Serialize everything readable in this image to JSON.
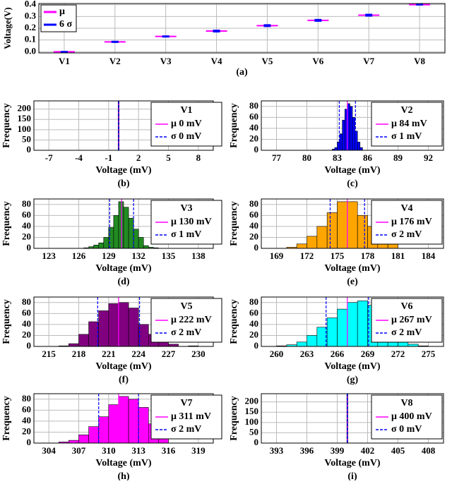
{
  "chart_data": [
    {
      "type": "errorbar",
      "caption": "(a)",
      "ylabel": "Voltage(V)",
      "categories": [
        "V1",
        "V2",
        "V3",
        "V4",
        "V5",
        "V6",
        "V7",
        "V8"
      ],
      "series": [
        {
          "name": "μ",
          "color": "#ff00ff",
          "values": [
            0.0,
            0.084,
            0.13,
            0.176,
            0.222,
            0.267,
            0.311,
            0.4
          ]
        },
        {
          "name": "6 σ",
          "color": "#0000ff",
          "values": [
            0,
            0.006,
            0.006,
            0.012,
            0.012,
            0.012,
            0.012,
            0
          ]
        }
      ],
      "ylim": [
        -0.01,
        0.41
      ],
      "yticks": [
        {
          "value": 0,
          "label": "0.0"
        },
        {
          "value": 0.1,
          "label": "0.1"
        },
        {
          "value": 0.2,
          "label": "0.2"
        },
        {
          "value": 0.3,
          "label": "0.3"
        },
        {
          "value": 0.4,
          "label": "0.4"
        }
      ],
      "grid": true,
      "legend": "upper left"
    },
    {
      "type": "histogram",
      "caption": "(b)",
      "xlabel": "Voltage (mV)",
      "ylabel": "Frequency",
      "legend_title": "V1",
      "mean_label": "μ 0 mV",
      "std_label": "σ 0 mV",
      "mean": 0,
      "std": 0,
      "bins": [
        -0.05,
        0.05
      ],
      "counts": [
        240
      ],
      "color": "#0000ff",
      "mean_color": "#ff00ff",
      "std_color": "#0000ff",
      "xlim": [
        -8.5,
        9.5
      ],
      "xticks": [
        -7,
        -4,
        -1,
        2,
        5,
        8
      ],
      "ylim": [
        0,
        240
      ],
      "yticks": [
        0,
        50,
        100,
        150,
        200
      ],
      "grid": true,
      "legend": "upper right"
    },
    {
      "type": "histogram",
      "caption": "(c)",
      "xlabel": "Voltage (mV)",
      "ylabel": "Frequency",
      "legend_title": "V2",
      "mean_label": "μ 84 mV",
      "std_label": "σ 1 mV",
      "mean": 84,
      "std": 0.8,
      "bins": [
        82.5,
        82.75,
        83,
        83.25,
        83.5,
        83.75,
        84,
        84.25,
        84.5,
        84.75,
        85,
        85.25,
        85.5
      ],
      "counts": [
        2,
        5,
        15,
        30,
        55,
        75,
        85,
        80,
        60,
        35,
        15,
        5
      ],
      "color": "#0000ff",
      "mean_color": "#ff00ff",
      "std_color": "#0000ff",
      "xlim": [
        75.5,
        93.5
      ],
      "xticks": [
        77,
        80,
        83,
        86,
        89,
        92
      ],
      "ylim": [
        0,
        90
      ],
      "yticks": [
        0,
        20,
        40,
        60,
        80
      ],
      "grid": true,
      "legend": "upper right"
    },
    {
      "type": "histogram",
      "caption": "(d)",
      "xlabel": "Voltage (mV)",
      "ylabel": "Frequency",
      "legend_title": "V3",
      "mean_label": "μ 130 mV",
      "std_label": "σ 1 mV",
      "mean": 130.3,
      "std": 1.2,
      "bins": [
        126.5,
        127,
        127.5,
        128,
        128.5,
        129,
        129.5,
        130,
        130.5,
        131,
        131.5,
        132,
        132.5,
        133,
        133.5,
        134
      ],
      "counts": [
        1,
        3,
        6,
        10,
        20,
        38,
        60,
        85,
        75,
        55,
        35,
        20,
        5,
        2,
        1
      ],
      "color": "#228b22",
      "mean_color": "#ff00ff",
      "std_color": "#0000ff",
      "xlim": [
        121.5,
        139.5
      ],
      "xticks": [
        123,
        126,
        129,
        132,
        135,
        138
      ],
      "ylim": [
        0,
        90
      ],
      "yticks": [
        0,
        20,
        40,
        60,
        80
      ],
      "grid": true,
      "legend": "upper right"
    },
    {
      "type": "histogram",
      "caption": "(e)",
      "xlabel": "Voltage (mV)",
      "ylabel": "Frequency",
      "legend_title": "V4",
      "mean_label": "μ 176 mV",
      "std_label": "σ 2 mV",
      "mean": 176,
      "std": 1.7,
      "bins": [
        170,
        171,
        172,
        173,
        174,
        175,
        176,
        177,
        178,
        179,
        180,
        181
      ],
      "counts": [
        2,
        8,
        22,
        40,
        65,
        85,
        85,
        60,
        40,
        18,
        8
      ],
      "color": "#ffa500",
      "mean_color": "#ff00ff",
      "std_color": "#0000ff",
      "xlim": [
        167.5,
        185.5
      ],
      "xticks": [
        169,
        172,
        175,
        178,
        181,
        184
      ],
      "ylim": [
        0,
        90
      ],
      "yticks": [
        0,
        20,
        40,
        60,
        80
      ],
      "grid": true,
      "legend": "upper right"
    },
    {
      "type": "histogram",
      "caption": "(f)",
      "xlabel": "Voltage (mV)",
      "ylabel": "Frequency",
      "legend_title": "V5",
      "mean_label": "μ 222 mV",
      "std_label": "σ 2 mV",
      "mean": 222,
      "std": 2.1,
      "bins": [
        216,
        217,
        218,
        219,
        220,
        221,
        222,
        223,
        224,
        225,
        226,
        227,
        228,
        229,
        230
      ],
      "counts": [
        1,
        5,
        22,
        45,
        65,
        78,
        80,
        70,
        40,
        22,
        8,
        4,
        0,
        1
      ],
      "color": "#800080",
      "mean_color": "#ff00ff",
      "std_color": "#0000ff",
      "xlim": [
        213.5,
        231.5
      ],
      "xticks": [
        215,
        218,
        221,
        224,
        227,
        230
      ],
      "ylim": [
        0,
        90
      ],
      "yticks": [
        0,
        20,
        40,
        60,
        80
      ],
      "grid": true,
      "legend": "upper right"
    },
    {
      "type": "histogram",
      "caption": "(g)",
      "xlabel": "Voltage (mV)",
      "ylabel": "Frequency",
      "legend_title": "V6",
      "mean_label": "μ 267 mV",
      "std_label": "σ 2 mV",
      "mean": 267,
      "std": 2.1,
      "bins": [
        260,
        261,
        262,
        263,
        264,
        265,
        266,
        267,
        268,
        269,
        270,
        271,
        272,
        273,
        274,
        275
      ],
      "counts": [
        1,
        3,
        8,
        20,
        35,
        52,
        68,
        80,
        83,
        75,
        55,
        30,
        10,
        4,
        1
      ],
      "color": "#00ffff",
      "mean_color": "#ff00ff",
      "std_color": "#0000ff",
      "xlim": [
        258.5,
        276.5
      ],
      "xticks": [
        260,
        263,
        266,
        269,
        272,
        275
      ],
      "ylim": [
        0,
        90
      ],
      "yticks": [
        0,
        20,
        40,
        60,
        80
      ],
      "grid": true,
      "legend": "upper right"
    },
    {
      "type": "histogram",
      "caption": "(h)",
      "xlabel": "Voltage (mV)",
      "ylabel": "Frequency",
      "legend_title": "V7",
      "mean_label": "μ 311 mV",
      "std_label": "σ 2 mV",
      "mean": 311,
      "std": 2,
      "bins": [
        305,
        306,
        307,
        308,
        309,
        310,
        311,
        312,
        313,
        314,
        315,
        316
      ],
      "counts": [
        2,
        5,
        15,
        30,
        48,
        70,
        85,
        80,
        65,
        35,
        12
      ],
      "color": "#ff00ff",
      "mean_color": "#ff00ff",
      "std_color": "#0000ff",
      "xlim": [
        302.5,
        320.5
      ],
      "xticks": [
        304,
        307,
        310,
        313,
        316,
        319
      ],
      "ylim": [
        0,
        90
      ],
      "yticks": [
        0,
        20,
        40,
        60,
        80
      ],
      "grid": true,
      "legend": "upper right"
    },
    {
      "type": "histogram",
      "caption": "(i)",
      "xlabel": "Voltage (mV)",
      "ylabel": "Frequency",
      "legend_title": "V8",
      "mean_label": "μ 400 mV",
      "std_label": "σ 0 mV",
      "mean": 400,
      "std": 0,
      "bins": [
        399.95,
        400.05
      ],
      "counts": [
        240
      ],
      "color": "#0000ff",
      "mean_color": "#ff00ff",
      "std_color": "#0000ff",
      "xlim": [
        391.5,
        409.5
      ],
      "xticks": [
        393,
        396,
        399,
        402,
        405,
        408
      ],
      "ylim": [
        0,
        240
      ],
      "yticks": [
        0,
        50,
        100,
        150,
        200
      ],
      "grid": true,
      "legend": "upper right"
    }
  ]
}
